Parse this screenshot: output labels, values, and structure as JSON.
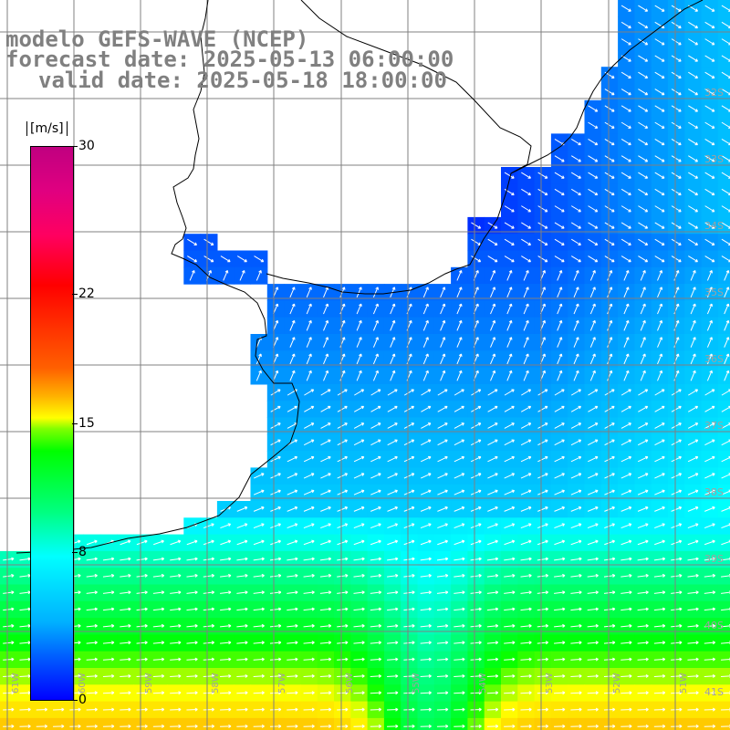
{
  "title": {
    "line1": "modelo GEFS-WAVE (NCEP)",
    "line2": "forecast date: 2025-05-13 06:00:00",
    "line3": "valid date: 2025-05-18 18:00:00"
  },
  "colorbar": {
    "unit": "[m/s]",
    "ticks": [
      "30",
      "22",
      "15",
      "8",
      "0"
    ],
    "tick_values": [
      30,
      22,
      15,
      8,
      0
    ]
  },
  "lat_labels": [
    "32S",
    "33S",
    "34S",
    "35S",
    "36S",
    "37S",
    "38S",
    "39S",
    "40S",
    "41S"
  ],
  "lon_labels": [
    "61W",
    "60W",
    "59W",
    "58W",
    "57W",
    "56W",
    "55W",
    "54W",
    "53W",
    "52W",
    "51W"
  ],
  "field": {
    "variable": "wind speed and direction",
    "range_m_s": [
      0,
      30
    ],
    "colors": {
      "land": "#ffffff",
      "coast": "#000000",
      "grid": "#808080",
      "arrows": "#ffffff"
    }
  }
}
